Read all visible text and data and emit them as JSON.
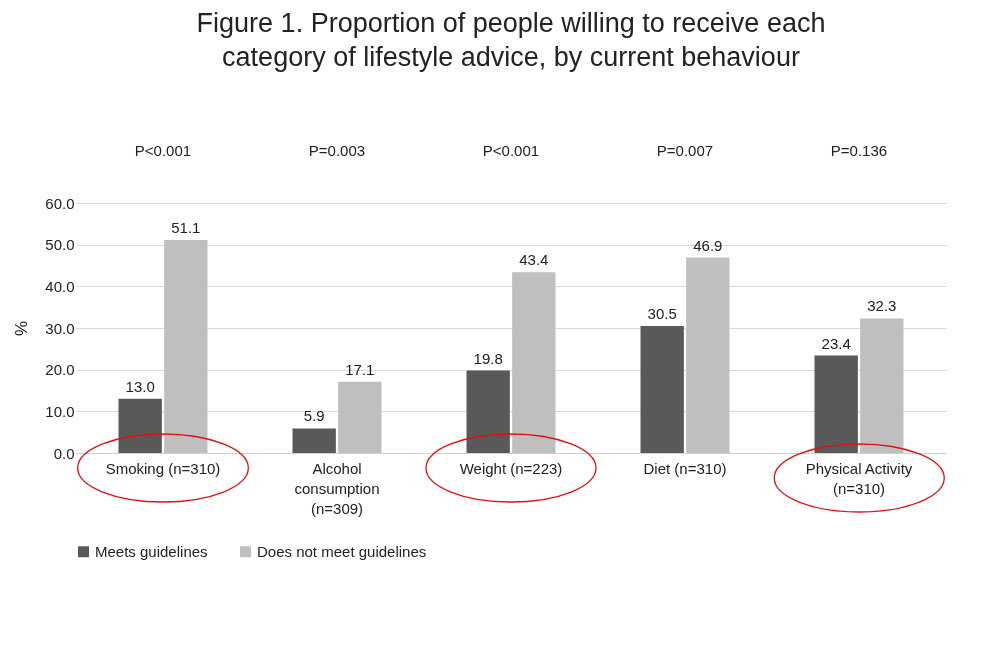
{
  "chart_data": {
    "type": "bar",
    "title": "Figure 1. Proportion of people willing to receive each category of lifestyle advice, by current behaviour",
    "ylabel": "%",
    "categories": [
      "Smoking (n=310)",
      "Alcohol consumption (n=309)",
      "Weight (n=223)",
      "Diet (n=310)",
      "Physical Activity (n=310)"
    ],
    "series": [
      {
        "name": "Meets guidelines",
        "color": "#595959",
        "values": [
          13.0,
          5.9,
          19.8,
          30.5,
          23.4
        ],
        "value_labels": [
          "13.0",
          "5.9",
          "19.8",
          "30.5",
          "23.4"
        ]
      },
      {
        "name": "Does not meet guidelines",
        "color": "#bfbfbf",
        "values": [
          51.1,
          17.1,
          43.4,
          46.9,
          32.3
        ],
        "value_labels": [
          "51.1",
          "17.1",
          "43.4",
          "46.9",
          "32.3"
        ]
      }
    ],
    "ylim": [
      0,
      60
    ],
    "yticks": [
      {
        "value": 0,
        "label": "0.0"
      },
      {
        "value": 10,
        "label": "10.0"
      },
      {
        "value": 20,
        "label": "20.0"
      },
      {
        "value": 30,
        "label": "30.0"
      },
      {
        "value": 40,
        "label": "40.0"
      },
      {
        "value": 50,
        "label": "50.0"
      },
      {
        "value": 60,
        "label": "60.0"
      }
    ],
    "annotations": [
      "P<0.001",
      "P=0.003",
      "P<0.001",
      "P=0.007",
      "P=0.136"
    ],
    "grid": "y",
    "legend": "bottom"
  }
}
